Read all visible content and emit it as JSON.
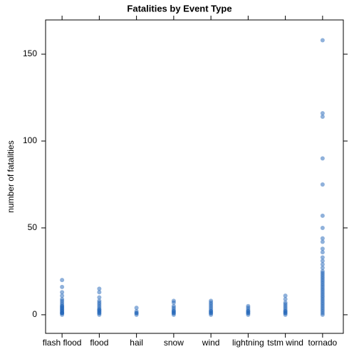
{
  "chart_data": {
    "type": "strip",
    "title": "Fatalities by Event Type",
    "y_label": "number of fatalities",
    "categories": [
      "flash flood",
      "flood",
      "hail",
      "snow",
      "wind",
      "lightning",
      "tstm wind",
      "tornado"
    ],
    "values": [
      [
        20,
        16,
        13,
        11,
        9,
        8,
        7,
        6,
        5,
        5,
        4,
        4,
        3,
        3,
        2,
        2,
        1,
        1,
        1,
        0
      ],
      [
        15,
        13,
        10,
        8,
        7,
        6,
        5,
        4,
        3,
        3,
        2,
        2,
        1,
        1,
        0
      ],
      [
        4,
        2,
        1,
        1,
        0
      ],
      [
        8,
        7,
        5,
        4,
        3,
        2,
        2,
        1,
        1,
        0
      ],
      [
        8,
        7,
        6,
        5,
        4,
        3,
        2,
        2,
        1,
        1,
        0
      ],
      [
        5,
        4,
        3,
        2,
        2,
        1,
        1,
        0
      ],
      [
        11,
        9,
        7,
        6,
        5,
        4,
        3,
        2,
        2,
        1,
        1,
        0
      ],
      [
        158,
        116,
        114,
        90,
        75,
        57,
        50,
        44,
        42,
        38,
        36,
        33,
        31,
        29,
        27,
        25,
        24,
        23,
        22,
        21,
        20,
        19,
        18,
        17,
        16,
        15,
        14,
        13,
        12,
        11,
        10,
        9,
        8,
        7,
        6,
        5,
        4,
        3,
        2,
        1,
        0
      ]
    ],
    "color": "#1f63b8",
    "ylim": [
      -10.7,
      169.7
    ],
    "yticks": [
      0,
      50,
      100,
      150
    ]
  }
}
